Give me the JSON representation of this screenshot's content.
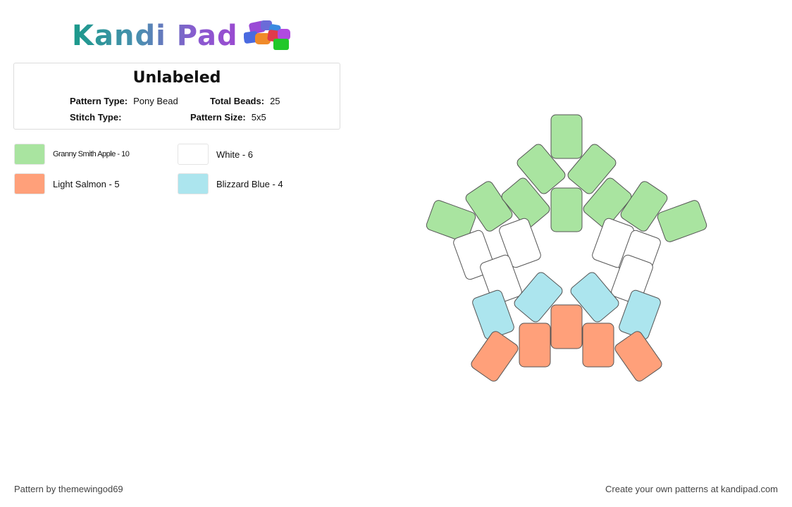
{
  "brand": {
    "name": "Kandi Pad",
    "logo_colors": [
      "#1a9a8a",
      "#4a8fb0",
      "#8a5ad0"
    ]
  },
  "pattern": {
    "title": "Unlabeled",
    "pattern_type_label": "Pattern Type:",
    "pattern_type": "Pony Bead",
    "total_beads_label": "Total Beads:",
    "total_beads": "25",
    "stitch_type_label": "Stitch Type:",
    "stitch_type": "",
    "pattern_size_label": "Pattern Size:",
    "pattern_size": "5x5"
  },
  "legend": [
    {
      "label": "Granny Smith Apple - 10",
      "color": "#a9e4a0"
    },
    {
      "label": "White - 6",
      "color": "#ffffff"
    },
    {
      "label": "Light Salmon - 5",
      "color": "#ffa07a"
    },
    {
      "label": "Blizzard Blue - 4",
      "color": "#ace5ee"
    }
  ],
  "beads": [
    {
      "color": "green"
    },
    {
      "color": "green"
    },
    {
      "color": "green"
    },
    {
      "color": "green"
    },
    {
      "color": "green"
    },
    {
      "color": "green"
    },
    {
      "color": "green"
    },
    {
      "color": "green"
    },
    {
      "color": "green"
    },
    {
      "color": "green"
    },
    {
      "color": "white"
    },
    {
      "color": "white"
    },
    {
      "color": "white"
    },
    {
      "color": "white"
    },
    {
      "color": "white"
    },
    {
      "color": "white"
    },
    {
      "color": "blue"
    },
    {
      "color": "blue"
    },
    {
      "color": "blue"
    },
    {
      "color": "blue"
    },
    {
      "color": "salmon"
    },
    {
      "color": "salmon"
    },
    {
      "color": "salmon"
    },
    {
      "color": "salmon"
    },
    {
      "color": "salmon"
    }
  ],
  "footer": {
    "credit": "Pattern by themewingod69",
    "cta": "Create your own patterns at kandipad.com"
  }
}
